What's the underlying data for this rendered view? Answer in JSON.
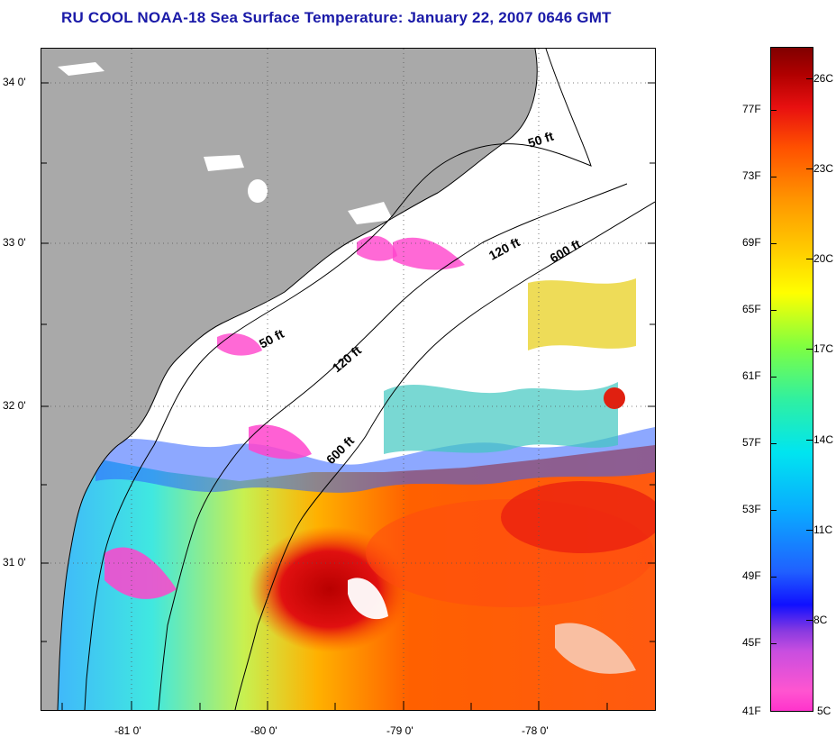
{
  "title": "RU COOL  NOAA-18  Sea Surface Temperature:  January 22, 2007 0646 GMT",
  "map": {
    "lat_labels": [
      "34 0'",
      "33 0'",
      "32 0'",
      "31 0'"
    ],
    "lon_labels": [
      "-81 0'",
      "-80 0'",
      "-79 0'",
      "-78 0'"
    ],
    "contour_labels": [
      "50 ft",
      "120 ft",
      "600 ft",
      "50 ft",
      "120 ft",
      "600 ft"
    ],
    "colors": {
      "land": "#a9a9a9",
      "cloud": "#ffffff",
      "coastline": "#000000"
    }
  },
  "colorbar": {
    "fahrenheit_labels": [
      "77F",
      "73F",
      "69F",
      "65F",
      "61F",
      "57F",
      "53F",
      "49F",
      "45F",
      "41F"
    ],
    "celsius_labels": [
      "26C",
      "23C",
      "20C",
      "17C",
      "14C",
      "11C",
      "8C",
      "5C"
    ]
  }
}
